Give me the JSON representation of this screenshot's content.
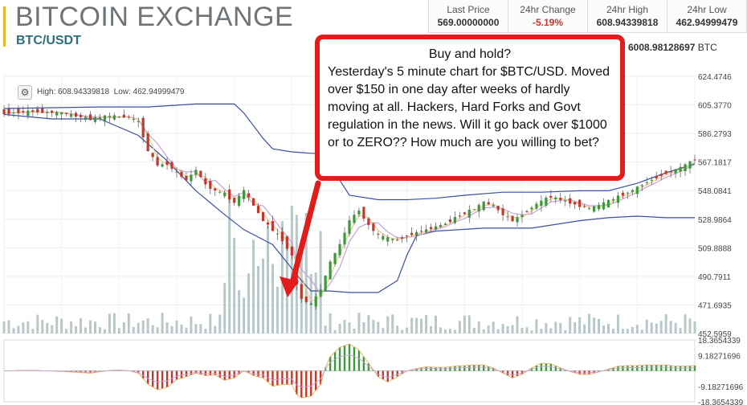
{
  "header": {
    "title": "BITCOIN EXCHANGE",
    "pair": "BTC/USDT"
  },
  "stats": [
    {
      "label": "Last Price",
      "value": "569.00000000"
    },
    {
      "label": "24hr Change",
      "value": "-5.19%"
    },
    {
      "label": "24hr High",
      "value": "608.94339818"
    },
    {
      "label": "24hr Low",
      "value": "462.94999479"
    }
  ],
  "balance": {
    "value": "6008.98128697",
    "unit": "BTC"
  },
  "toolbar": {
    "high_label": "High: 608.94339818",
    "low_label": "Low: 462.94999479"
  },
  "callout": {
    "heading": "Buy and hold?",
    "body": "Yesterday's 5 minute chart for $BTC/USD. Moved over $150 in one day after weeks of hardly moving at all.  Hackers, Hard Forks and Govt regulation in the news. Will it go back over $1000 or to ZERO?? How much are you willing to bet?"
  },
  "colors": {
    "up": "#3a9a3a",
    "down": "#c0392b",
    "band": "#3a4fa0",
    "ma": "#c9a0d8",
    "volume": "#b8c7c7",
    "callout_border": "#e21b1b"
  },
  "chart_data": {
    "type": "candlestick",
    "y_ticks": [
      "624.4746",
      "605.3770",
      "586.2793",
      "567.1817",
      "548.0841",
      "528.9864",
      "509.8888",
      "490.7911",
      "471.6935",
      "452.5959"
    ],
    "ylim": [
      452.5959,
      624.4746
    ],
    "indicator_ticks": [
      "18.3654339",
      "9.18271696",
      "-9.18271696",
      "-18.3654339"
    ],
    "indicator_ylim": [
      -18.3654339,
      18.3654339
    ],
    "close_path": [
      [
        0,
        600
      ],
      [
        6,
        601
      ],
      [
        12,
        600
      ],
      [
        18,
        596
      ],
      [
        22,
        598
      ],
      [
        26,
        597
      ],
      [
        28,
        594
      ],
      [
        30,
        575
      ],
      [
        32,
        565
      ],
      [
        34,
        566
      ],
      [
        36,
        560
      ],
      [
        38,
        555
      ],
      [
        40,
        562
      ],
      [
        42,
        552
      ],
      [
        44,
        548
      ],
      [
        46,
        546
      ],
      [
        48,
        540
      ],
      [
        50,
        548
      ],
      [
        52,
        538
      ],
      [
        54,
        528
      ],
      [
        56,
        522
      ],
      [
        58,
        515
      ],
      [
        60,
        505
      ],
      [
        61,
        485
      ],
      [
        62,
        476
      ],
      [
        64,
        472
      ],
      [
        66,
        482
      ],
      [
        68,
        500
      ],
      [
        70,
        512
      ],
      [
        72,
        528
      ],
      [
        74,
        535
      ],
      [
        76,
        525
      ],
      [
        78,
        518
      ],
      [
        80,
        516
      ],
      [
        82,
        515
      ],
      [
        84,
        518
      ],
      [
        86,
        520
      ],
      [
        88,
        522
      ],
      [
        90,
        524
      ],
      [
        92,
        526
      ],
      [
        94,
        530
      ],
      [
        96,
        533
      ],
      [
        98,
        536
      ],
      [
        100,
        540
      ],
      [
        102,
        538
      ],
      [
        104,
        532
      ],
      [
        106,
        528
      ],
      [
        108,
        532
      ],
      [
        110,
        537
      ],
      [
        112,
        541
      ],
      [
        114,
        544
      ],
      [
        116,
        542
      ],
      [
        118,
        540
      ],
      [
        120,
        538
      ],
      [
        122,
        536
      ],
      [
        124,
        538
      ],
      [
        126,
        541
      ],
      [
        128,
        544
      ],
      [
        130,
        547
      ],
      [
        132,
        550
      ],
      [
        134,
        554
      ],
      [
        136,
        557
      ],
      [
        138,
        560
      ],
      [
        140,
        562
      ],
      [
        142,
        565
      ],
      [
        144,
        569
      ]
    ],
    "upper_band": [
      [
        0,
        603
      ],
      [
        20,
        604
      ],
      [
        30,
        604
      ],
      [
        40,
        606
      ],
      [
        48,
        606
      ],
      [
        50,
        600
      ],
      [
        54,
        583
      ],
      [
        56,
        576
      ],
      [
        60,
        574
      ],
      [
        64,
        573
      ],
      [
        66,
        573
      ],
      [
        68,
        565
      ],
      [
        72,
        545
      ],
      [
        78,
        542
      ],
      [
        84,
        542
      ],
      [
        90,
        543
      ],
      [
        96,
        545
      ],
      [
        104,
        547
      ],
      [
        112,
        547
      ],
      [
        120,
        548
      ],
      [
        126,
        548
      ],
      [
        132,
        553
      ],
      [
        138,
        560
      ],
      [
        144,
        566
      ]
    ],
    "lower_band": [
      [
        0,
        599
      ],
      [
        10,
        596
      ],
      [
        20,
        596
      ],
      [
        28,
        585
      ],
      [
        34,
        568
      ],
      [
        40,
        548
      ],
      [
        46,
        532
      ],
      [
        50,
        522
      ],
      [
        56,
        512
      ],
      [
        62,
        488
      ],
      [
        64,
        481
      ],
      [
        68,
        481
      ],
      [
        72,
        480
      ],
      [
        78,
        480
      ],
      [
        82,
        488
      ],
      [
        84,
        505
      ],
      [
        86,
        518
      ],
      [
        90,
        521
      ],
      [
        100,
        523
      ],
      [
        110,
        523
      ],
      [
        120,
        528
      ],
      [
        126,
        530
      ],
      [
        132,
        531
      ],
      [
        138,
        530
      ],
      [
        144,
        530
      ]
    ],
    "annotation": "red arrow from callout to the price low"
  }
}
